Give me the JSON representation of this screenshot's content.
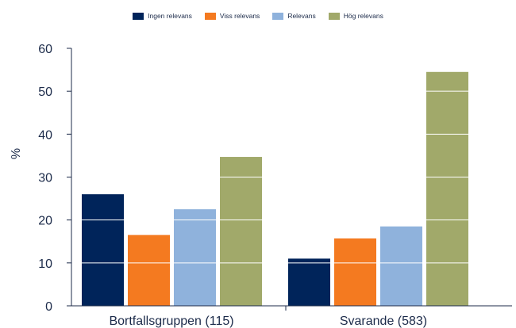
{
  "chart_data": {
    "type": "bar",
    "title": "",
    "xlabel": "",
    "ylabel": "%",
    "ylim": [
      0,
      60
    ],
    "yticks": [
      0,
      10,
      20,
      30,
      40,
      50,
      60
    ],
    "grid": "horizontal lines drawn over bars",
    "legend_position": "top-center",
    "categories": [
      "Bortfallsgruppen (115)",
      "Svarande (583)"
    ],
    "series": [
      {
        "name": "Ingen relevans",
        "color": "#00245a",
        "values": [
          26,
          11
        ]
      },
      {
        "name": "Viss relevans",
        "color": "#f47a20",
        "values": [
          16.5,
          15.7
        ]
      },
      {
        "name": "Relevans",
        "color": "#8fb2dc",
        "values": [
          22.5,
          18.5
        ]
      },
      {
        "name": "Hög relevans",
        "color": "#a1a96a",
        "values": [
          34.7,
          54.5
        ]
      }
    ]
  }
}
